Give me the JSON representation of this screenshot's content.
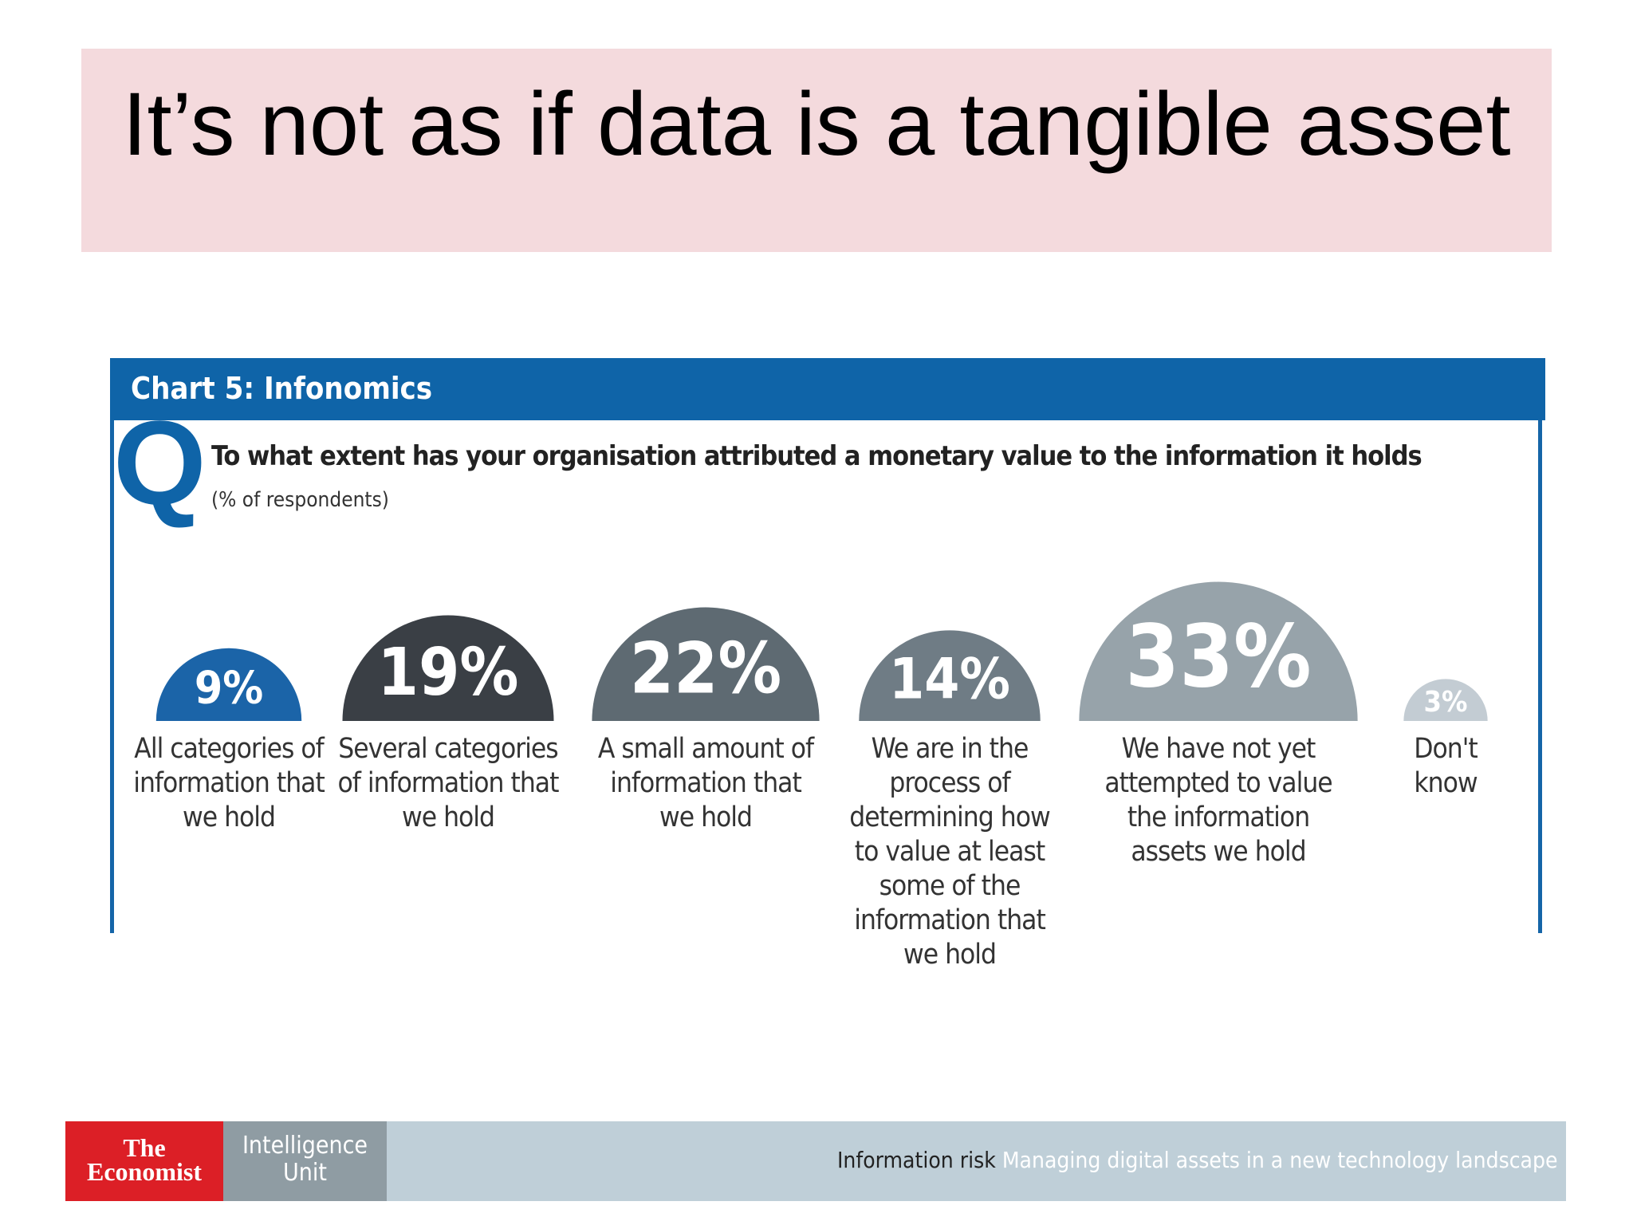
{
  "slide_title": "It’s not as if data is a tangible asset",
  "chart_data": {
    "type": "semicircle",
    "title": "Chart 5: Infonomics",
    "marker": "Q",
    "question": "To what extent has your organisation attributed a monetary value to the information it holds",
    "subtitle": "(% of respondents)",
    "categories": [
      "All categories of information that we hold",
      "Several categories of information that we hold",
      "A small amount of information that we hold",
      "We are in the process of determining how to value at least some of the information that we hold",
      "We have not yet attempted to value the information assets we hold",
      "Don't know"
    ],
    "values": [
      9,
      19,
      22,
      14,
      33,
      3
    ],
    "value_labels": [
      "9%",
      "19%",
      "22%",
      "14%",
      "33%",
      "3%"
    ],
    "colors": [
      "#1b64a8",
      "#3a3f45",
      "#5e6a72",
      "#6f7c85",
      "#97a3aa",
      "#c3ccd3"
    ]
  },
  "footer": {
    "brand_top": "The",
    "brand_bottom": "Economist",
    "unit_top": "Intelligence",
    "unit_bottom": "Unit",
    "report": "Information risk",
    "report_subtitle": "Managing digital assets in a new technology landscape"
  }
}
